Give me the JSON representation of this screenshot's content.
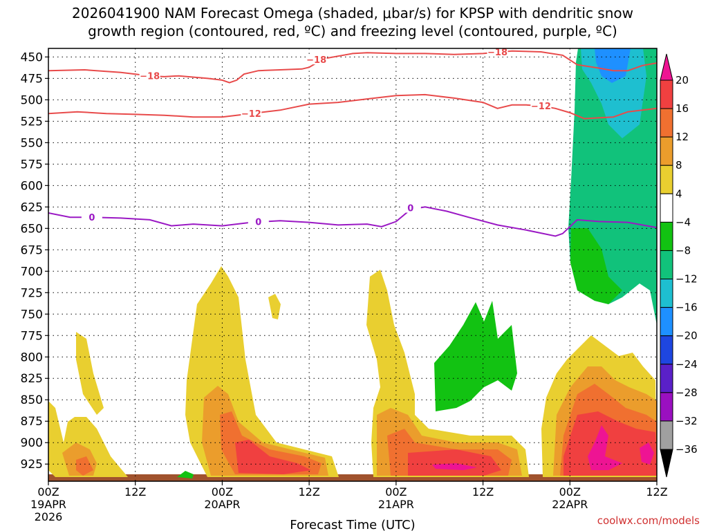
{
  "chart_data": {
    "type": "heatmap",
    "title_line1": "2026041900 NAM Forecast Omega (shaded, μbar/s) for KPSP with dendritic snow",
    "title_line2": "growth region (contoured, red, ºC) and freezing level (contoured, purple, ºC)",
    "xlabel": "Forecast Time (UTC)",
    "credit": "coolwx.com/models",
    "x_range_hours": [
      0,
      84
    ],
    "y_range_hpa": [
      440,
      945
    ],
    "y_ticks": [
      "450",
      "475",
      "500",
      "525",
      "550",
      "575",
      "600",
      "625",
      "650",
      "675",
      "700",
      "725",
      "750",
      "775",
      "800",
      "825",
      "850",
      "875",
      "900",
      "925"
    ],
    "x_ticks": [
      {
        "hour": 0,
        "time": "00Z",
        "date": "19APR",
        "year": "2026"
      },
      {
        "hour": 12,
        "time": "12Z",
        "date": "",
        "year": ""
      },
      {
        "hour": 24,
        "time": "00Z",
        "date": "20APR",
        "year": ""
      },
      {
        "hour": 36,
        "time": "12Z",
        "date": "",
        "year": ""
      },
      {
        "hour": 48,
        "time": "00Z",
        "date": "21APR",
        "year": ""
      },
      {
        "hour": 60,
        "time": "12Z",
        "date": "",
        "year": ""
      },
      {
        "hour": 72,
        "time": "00Z",
        "date": "22APR",
        "year": ""
      },
      {
        "hour": 84,
        "time": "12Z",
        "date": "",
        "year": ""
      }
    ],
    "colorbar": {
      "labels": [
        "20",
        "16",
        "12",
        "8",
        "4",
        "−4",
        "−8",
        "−12",
        "−16",
        "−20",
        "−24",
        "−28",
        "−32",
        "−36"
      ],
      "colors": [
        "#ee1493",
        "#f04040",
        "#f07030",
        "#eb9d2c",
        "#e9cf30",
        "#ffffff",
        "#12c212",
        "#11c27b",
        "#1ebfd0",
        "#1e90ff",
        "#1e46e0",
        "#5a20c8",
        "#9a10c0",
        "#a0a0a0",
        "#000000"
      ]
    },
    "series": [
      {
        "name": "-18 ºC",
        "color": "#e84a4a",
        "label": "−18",
        "points": [
          [
            0,
            466
          ],
          [
            5,
            465
          ],
          [
            10,
            468
          ],
          [
            14,
            472
          ],
          [
            16,
            473
          ],
          [
            18,
            472
          ],
          [
            22,
            475
          ],
          [
            24,
            477
          ],
          [
            25,
            480
          ],
          [
            26,
            477
          ],
          [
            27,
            470
          ],
          [
            29,
            466
          ],
          [
            32,
            465
          ],
          [
            35,
            464
          ],
          [
            36,
            462
          ],
          [
            38,
            452
          ],
          [
            42,
            446
          ],
          [
            44,
            445
          ],
          [
            48,
            446
          ],
          [
            52,
            446
          ],
          [
            56,
            447
          ],
          [
            60,
            446
          ],
          [
            64,
            443
          ],
          [
            68,
            444
          ],
          [
            71,
            448
          ],
          [
            73,
            459
          ],
          [
            76,
            463
          ],
          [
            78,
            466
          ],
          [
            80,
            466
          ],
          [
            82,
            460
          ],
          [
            84,
            457
          ]
        ],
        "label_at": [
          [
            14,
            472
          ],
          [
            37,
            453
          ],
          [
            62,
            444
          ]
        ]
      },
      {
        "name": "-12 ºC",
        "color": "#e84a4a",
        "label": "−12",
        "points": [
          [
            0,
            516
          ],
          [
            4,
            514
          ],
          [
            8,
            516
          ],
          [
            12,
            517
          ],
          [
            16,
            518
          ],
          [
            20,
            520
          ],
          [
            24,
            520
          ],
          [
            26,
            518
          ],
          [
            29,
            515
          ],
          [
            32,
            512
          ],
          [
            36,
            505
          ],
          [
            40,
            503
          ],
          [
            44,
            499
          ],
          [
            48,
            495
          ],
          [
            52,
            494
          ],
          [
            56,
            498
          ],
          [
            60,
            503
          ],
          [
            62,
            510
          ],
          [
            64,
            506
          ],
          [
            66,
            506
          ],
          [
            68,
            507
          ],
          [
            70,
            510
          ],
          [
            72,
            515
          ],
          [
            74,
            522
          ],
          [
            76,
            521
          ],
          [
            78,
            520
          ],
          [
            80,
            514
          ],
          [
            84,
            510
          ]
        ],
        "label_at": [
          [
            28,
            516
          ],
          [
            68,
            507
          ]
        ]
      },
      {
        "name": "0 ºC",
        "color": "#9a18c4",
        "label": "0",
        "points": [
          [
            0,
            632
          ],
          [
            3,
            637
          ],
          [
            6,
            637
          ],
          [
            10,
            638
          ],
          [
            14,
            640
          ],
          [
            17,
            647
          ],
          [
            20,
            645
          ],
          [
            24,
            647
          ],
          [
            28,
            643
          ],
          [
            32,
            641
          ],
          [
            36,
            643
          ],
          [
            40,
            646
          ],
          [
            44,
            645
          ],
          [
            46,
            648
          ],
          [
            48,
            642
          ],
          [
            50,
            628
          ],
          [
            52,
            625
          ],
          [
            55,
            630
          ],
          [
            58,
            637
          ],
          [
            62,
            646
          ],
          [
            66,
            652
          ],
          [
            70,
            659
          ],
          [
            71,
            656
          ],
          [
            73,
            640
          ],
          [
            76,
            642
          ],
          [
            80,
            643
          ],
          [
            84,
            649
          ]
        ],
        "label_at": [
          [
            6,
            637
          ],
          [
            29,
            642
          ],
          [
            50,
            626
          ]
        ]
      }
    ]
  }
}
